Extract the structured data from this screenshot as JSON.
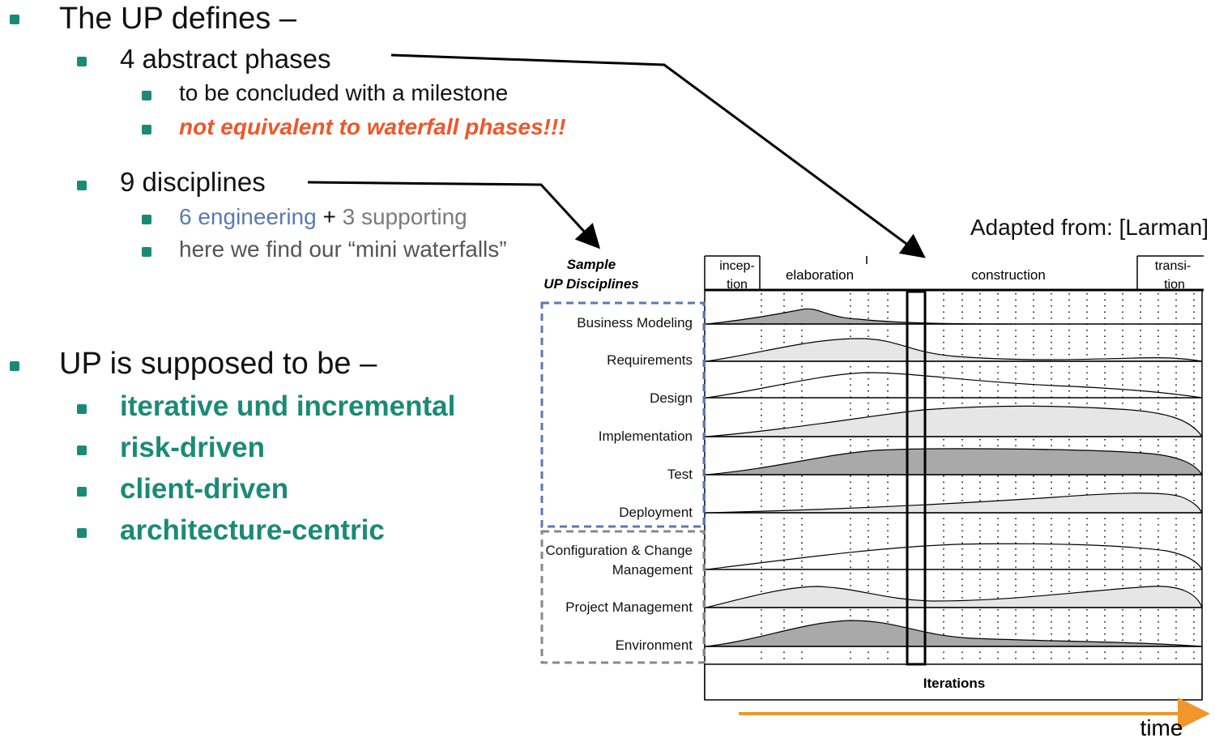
{
  "bullets": {
    "up_defines": "The UP defines –",
    "phases": "4 abstract phases",
    "milestone": "to be concluded with a milestone",
    "not_waterfall": "not equivalent to waterfall phases!!!",
    "disciplines": "9 disciplines",
    "engineering": "6 engineering",
    "plus": "+",
    "supporting": "3 supporting",
    "mini_waterfalls": "here we find our “mini waterfalls”",
    "supposed": "UP is supposed to be –",
    "iterative": "iterative und incremental",
    "risk": "risk-driven",
    "client": "client-driven",
    "architecture": "architecture-centric"
  },
  "diagram": {
    "adapted": "Adapted from: [Larman]",
    "sample_line1": "Sample",
    "sample_line2": "UP Disciplines",
    "phases": {
      "inception_1": "incep-",
      "inception_2": "tion",
      "elaboration": "elaboration",
      "construction": "construction",
      "transition_1": "transi-",
      "transition_2": "tion"
    },
    "disciplines": {
      "business": "Business Modeling",
      "requirements": "Requirements",
      "design": "Design",
      "implementation": "Implementation",
      "test": "Test",
      "deployment": "Deployment",
      "config_1": "Configuration & Change",
      "config_2": "Management",
      "project": "Project Management",
      "environment": "Environment"
    },
    "iterations": "Iterations",
    "time": "time"
  },
  "colors": {
    "bullet": "#1a8a76",
    "red": "#f0562a",
    "blue": "#5a78b8",
    "gray": "#7b7b7b",
    "arrow": "#f0962a",
    "fill_light": "#e6e6e6",
    "fill_dark": "#a9a9a9"
  }
}
